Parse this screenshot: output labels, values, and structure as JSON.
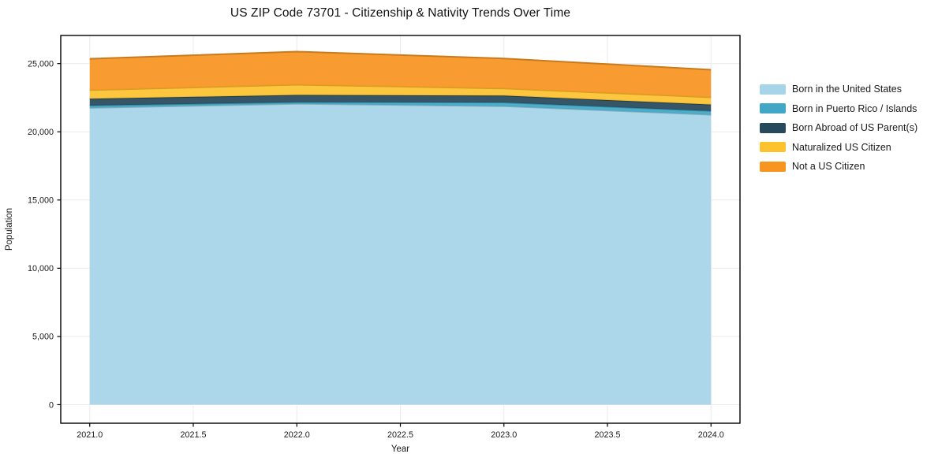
{
  "chart_data": {
    "type": "area",
    "stacked": true,
    "title": "US ZIP Code 73701 - Citizenship & Nativity Trends Over Time",
    "xlabel": "Year",
    "ylabel": "Population",
    "x": [
      2021,
      2022,
      2023,
      2024
    ],
    "series": [
      {
        "name": "Born in the United States",
        "color": "#A6D4E8",
        "values": [
          21750,
          22050,
          21875,
          21250
        ]
      },
      {
        "name": "Born in Puerto Rico / Islands",
        "color": "#41A7C5",
        "values": [
          175,
          125,
          275,
          275
        ]
      },
      {
        "name": "Born Abroad of US Parent(s)",
        "color": "#27495C",
        "values": [
          500,
          525,
          500,
          475
        ]
      },
      {
        "name": "Naturalized US Citizen",
        "color": "#FCC32F",
        "values": [
          625,
          750,
          525,
          525
        ]
      },
      {
        "name": "Not a US Citizen",
        "color": "#F89521",
        "values": [
          2300,
          2425,
          2200,
          2025
        ]
      }
    ],
    "xticks": {
      "values": [
        2021.0,
        2021.5,
        2022.0,
        2022.5,
        2023.0,
        2023.5,
        2024.0
      ],
      "labels": [
        "2021.0",
        "2021.5",
        "2022.0",
        "2022.5",
        "2023.0",
        "2023.5",
        "2024.0"
      ]
    },
    "yticks": {
      "values": [
        0,
        5000,
        10000,
        15000,
        20000,
        25000
      ],
      "labels": [
        "0",
        "5,000",
        "10,000",
        "15,000",
        "20,000",
        "25,000"
      ]
    },
    "xlim": [
      2020.86,
      2024.14
    ],
    "ylim": [
      -1360,
      27060
    ],
    "grid": true,
    "legend_position": "right",
    "colors": {
      "axis": "#000000",
      "grid": "#ebebeb",
      "text": "#1a1a1a"
    }
  }
}
